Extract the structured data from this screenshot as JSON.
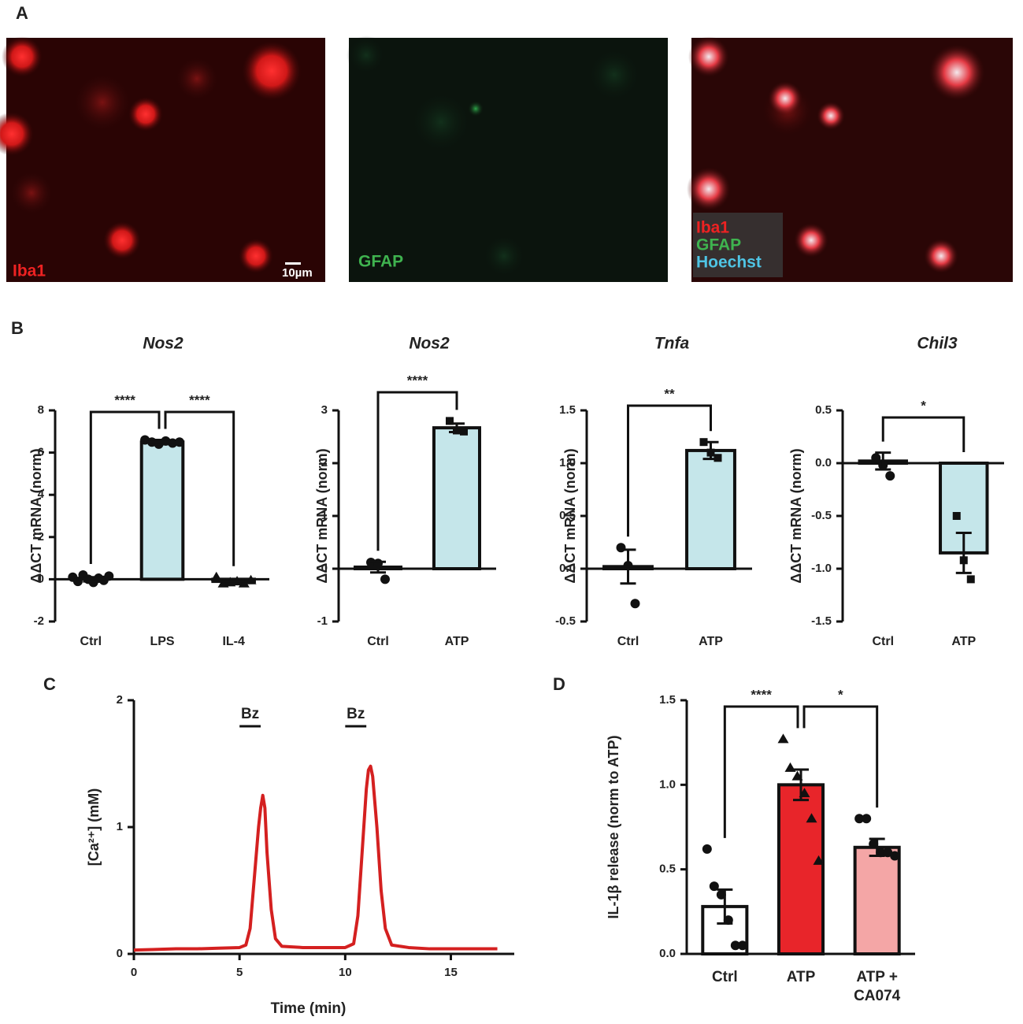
{
  "panel_labels": [
    "A",
    "B",
    "C",
    "D"
  ],
  "images": [
    {
      "labels": [
        "Iba1"
      ],
      "scale_bar": "10µm"
    },
    {
      "labels": [
        "GFAP"
      ]
    },
    {
      "labels": [
        "Iba1",
        "GFAP",
        "Hoechst"
      ]
    }
  ],
  "chart_data": [
    {
      "type": "bar",
      "title": "Nos2",
      "ylabel": "ΔΔCT mRNA (norm)",
      "categories": [
        "Ctrl",
        "LPS",
        "IL-4"
      ],
      "values": [
        0,
        6.5,
        -0.1
      ],
      "errors": [
        0.1,
        0.1,
        0.1
      ],
      "points": [
        [
          0.1,
          -0.1,
          0.2,
          0,
          -0.15,
          0.05,
          -0.05,
          0.15
        ],
        [
          6.6,
          6.5,
          6.4,
          6.55,
          6.45,
          6.5
        ],
        [
          0.1,
          -0.2,
          -0.15,
          -0.1,
          -0.2,
          -0.05
        ]
      ],
      "colors": [
        "#ffffff",
        "#c5e6ea",
        "#ffffff"
      ],
      "markers": [
        "circle",
        "circle",
        "triangle"
      ],
      "significance": [
        {
          "from": 0,
          "to": 1,
          "label": "****"
        },
        {
          "from": 1,
          "to": 2,
          "label": "****"
        }
      ],
      "ylim": [
        -2,
        8
      ],
      "yticks": [
        -2,
        0,
        2,
        4,
        6,
        8
      ]
    },
    {
      "type": "bar",
      "title": "Nos2",
      "ylabel": "ΔΔCT mRNA (norm)",
      "categories": [
        "Ctrl",
        "ATP"
      ],
      "values": [
        0.03,
        2.67
      ],
      "errors": [
        0.1,
        0.08
      ],
      "points": [
        [
          0.12,
          0.1,
          -0.2
        ],
        [
          2.8,
          2.62,
          2.6
        ]
      ],
      "colors": [
        "#ffffff",
        "#c5e6ea"
      ],
      "markers": [
        "circle",
        "square"
      ],
      "significance": [
        {
          "from": 0,
          "to": 1,
          "label": "****"
        }
      ],
      "ylim": [
        -1,
        3
      ],
      "yticks": [
        -1,
        0,
        1,
        2,
        3
      ]
    },
    {
      "type": "bar",
      "title": "Tnfa",
      "ylabel": "ΔΔCT mRNA (norm)",
      "categories": [
        "Ctrl",
        "ATP"
      ],
      "values": [
        0.02,
        1.12
      ],
      "errors": [
        0.16,
        0.08
      ],
      "points": [
        [
          0.2,
          0.03,
          -0.33
        ],
        [
          1.2,
          1.1,
          1.05
        ]
      ],
      "colors": [
        "#ffffff",
        "#c5e6ea"
      ],
      "markers": [
        "circle",
        "square"
      ],
      "significance": [
        {
          "from": 0,
          "to": 1,
          "label": "**"
        }
      ],
      "ylim": [
        -0.5,
        1.5
      ],
      "yticks": [
        -0.5,
        {
          "value": 0,
          "label": "0.0"
        },
        0.5,
        {
          "value": 1,
          "label": "1.0"
        },
        1.5
      ]
    },
    {
      "type": "bar",
      "title": "Chil3",
      "ylabel": "ΔΔCT mRNA (norm)",
      "categories": [
        "Ctrl",
        "ATP"
      ],
      "values": [
        0.02,
        -0.85
      ],
      "errors": [
        0.08,
        0.19
      ],
      "points": [
        [
          0.05,
          -0.02,
          -0.12
        ],
        [
          -0.5,
          -0.92,
          -1.1
        ]
      ],
      "colors": [
        "#ffffff",
        "#c5e6ea"
      ],
      "markers": [
        "circle",
        "square"
      ],
      "significance": [
        {
          "from": 0,
          "to": 1,
          "label": "*"
        }
      ],
      "ylim": [
        -1.5,
        0.5
      ],
      "yticks": [
        -1.5,
        {
          "value": -1,
          "label": "-1.0"
        },
        -0.5,
        {
          "value": 0,
          "label": "0.0"
        },
        0.5
      ]
    },
    {
      "type": "line",
      "xlabel": "Time (min)",
      "ylabel": "[Ca²⁺] (mM)",
      "color": "#d42020",
      "x": [
        0,
        1,
        2,
        3,
        4,
        5,
        5.3,
        5.5,
        5.7,
        5.9,
        6.0,
        6.1,
        6.2,
        6.3,
        6.5,
        6.7,
        7,
        8,
        9,
        10,
        10.4,
        10.6,
        10.8,
        11.0,
        11.1,
        11.2,
        11.3,
        11.5,
        11.7,
        11.9,
        12.2,
        13,
        14,
        15,
        16,
        17.2
      ],
      "values": [
        0.03,
        0.035,
        0.04,
        0.04,
        0.045,
        0.05,
        0.07,
        0.2,
        0.6,
        1.0,
        1.15,
        1.25,
        1.15,
        0.8,
        0.35,
        0.12,
        0.06,
        0.05,
        0.05,
        0.05,
        0.08,
        0.3,
        0.8,
        1.3,
        1.45,
        1.48,
        1.4,
        1.0,
        0.5,
        0.2,
        0.07,
        0.05,
        0.04,
        0.04,
        0.04,
        0.04
      ],
      "annotations": [
        {
          "label": "Bz",
          "x": [
            5,
            6
          ]
        },
        {
          "label": "Bz",
          "x": [
            10,
            11
          ]
        }
      ],
      "xlim": [
        0,
        18
      ],
      "xticks": [
        0,
        5,
        10,
        15
      ],
      "ylim": [
        0,
        2
      ],
      "yticks": [
        0,
        1,
        2
      ]
    },
    {
      "type": "bar",
      "ylabel": "IL-1β release (norm to ATP)",
      "categories": [
        "Ctrl",
        "ATP",
        "ATP + CA074"
      ],
      "values": [
        0.28,
        1.0,
        0.63
      ],
      "errors": [
        0.1,
        0.09,
        0.05
      ],
      "points": [
        [
          0.62,
          0.4,
          0.35,
          0.2,
          0.05,
          0.05
        ],
        [
          1.27,
          1.1,
          1.05,
          0.95,
          0.8,
          0.55
        ],
        [
          0.8,
          0.8,
          0.65,
          0.6,
          0.6,
          0.58
        ]
      ],
      "colors": [
        "#ffffff",
        "#e8252a",
        "#f4a6a6"
      ],
      "markers": [
        "circle",
        "triangle",
        "circle"
      ],
      "significance": [
        {
          "from": 0,
          "to": 1,
          "label": "****"
        },
        {
          "from": 1,
          "to": 2,
          "label": "*"
        }
      ],
      "ylim": [
        0,
        1.5
      ],
      "yticks": [
        {
          "value": 0,
          "label": "0.0"
        },
        0.5,
        {
          "value": 1,
          "label": "1.0"
        },
        1.5
      ]
    }
  ]
}
